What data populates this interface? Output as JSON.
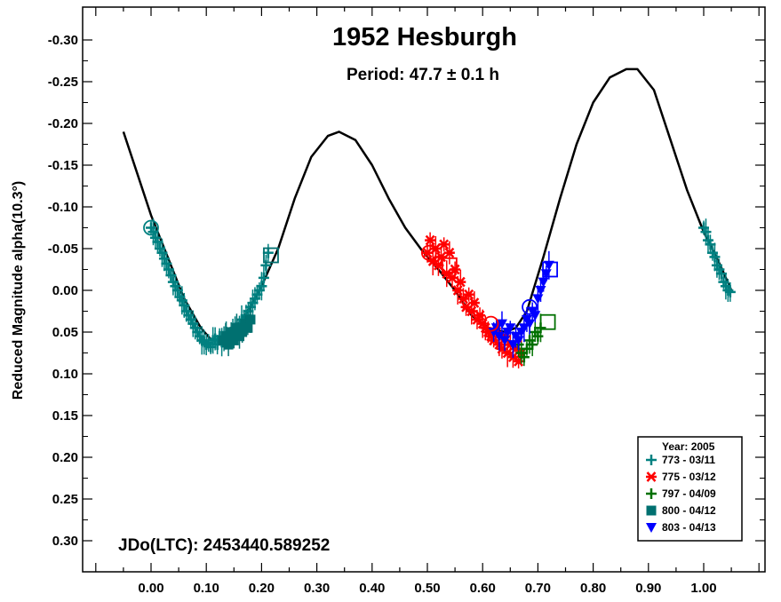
{
  "chart_data": {
    "type": "scatter",
    "title": "1952 Hesburgh",
    "subtitle": "Period: 47.7 ± 0.1 h",
    "xlabel": "",
    "ylabel": "Reduced Magnitude alpha(10.3°)",
    "annotation": "JDo(LTC): 2453440.589252",
    "xlim": [
      -0.12,
      1.12
    ],
    "ylim": [
      0.33,
      -0.33
    ],
    "y_inverted": true,
    "x_ticks": [
      "0.00",
      "0.10",
      "0.20",
      "0.30",
      "0.40",
      "0.50",
      "0.60",
      "0.70",
      "0.80",
      "0.90",
      "1.00"
    ],
    "x_tick_values": [
      0.0,
      0.1,
      0.2,
      0.3,
      0.4,
      0.5,
      0.6,
      0.7,
      0.8,
      0.9,
      1.0
    ],
    "y_ticks": [
      "-0.30",
      "-0.25",
      "-0.20",
      "-0.15",
      "-0.10",
      "-0.05",
      "0.00",
      "0.05",
      "0.10",
      "0.15",
      "0.20",
      "0.25",
      "0.30"
    ],
    "y_tick_values": [
      -0.3,
      -0.25,
      -0.2,
      -0.15,
      -0.1,
      -0.05,
      0.0,
      0.05,
      0.1,
      0.15,
      0.2,
      0.25,
      0.3
    ],
    "legend": {
      "title": "Year: 2005",
      "placement": "bottom-right"
    },
    "fit_curve": {
      "color": "#000000",
      "x": [
        -0.05,
        -0.02,
        0.0,
        0.03,
        0.06,
        0.09,
        0.11,
        0.14,
        0.17,
        0.2,
        0.23,
        0.26,
        0.29,
        0.32,
        0.34,
        0.37,
        0.4,
        0.43,
        0.46,
        0.49,
        0.52,
        0.55,
        0.58,
        0.61,
        0.64,
        0.66,
        0.68,
        0.71,
        0.74,
        0.77,
        0.8,
        0.83,
        0.86,
        0.88,
        0.91,
        0.94,
        0.97,
        1.0,
        1.03,
        1.05
      ],
      "y": [
        -0.19,
        -0.13,
        -0.09,
        -0.04,
        0.01,
        0.045,
        0.06,
        0.055,
        0.03,
        -0.005,
        -0.05,
        -0.11,
        -0.16,
        -0.185,
        -0.19,
        -0.18,
        -0.15,
        -0.11,
        -0.075,
        -0.048,
        -0.025,
        0.0,
        0.03,
        0.045,
        0.05,
        0.045,
        0.025,
        -0.04,
        -0.11,
        -0.175,
        -0.225,
        -0.255,
        -0.265,
        -0.265,
        -0.24,
        -0.18,
        -0.12,
        -0.07,
        -0.03,
        0.0
      ]
    },
    "series": [
      {
        "name": "773 - 03/11",
        "color": "#008080",
        "marker": "plus",
        "x": [
          0.0,
          0.004,
          0.008,
          0.012,
          0.016,
          0.02,
          0.024,
          0.028,
          0.032,
          0.036,
          0.04,
          0.044,
          0.048,
          0.052,
          0.056,
          0.06,
          0.064,
          0.068,
          0.072,
          0.076,
          0.08,
          0.084,
          0.088,
          0.092,
          0.096,
          0.1,
          0.104,
          0.108,
          0.112,
          0.116,
          0.12,
          0.124,
          0.128,
          0.132,
          0.136,
          0.14,
          0.144,
          0.148,
          0.152,
          0.156,
          0.16,
          0.164,
          0.168,
          0.172,
          0.176,
          0.18,
          0.184,
          0.188,
          0.192,
          0.196,
          0.2,
          0.204,
          0.208,
          0.212,
          1.0,
          1.004,
          1.008,
          1.012,
          1.016,
          1.02,
          1.024,
          1.028,
          1.032,
          1.036,
          1.04,
          1.044,
          1.048
        ],
        "y": [
          -0.075,
          -0.07,
          -0.063,
          -0.058,
          -0.05,
          -0.045,
          -0.038,
          -0.032,
          -0.025,
          -0.018,
          -0.01,
          -0.005,
          0.0,
          0.008,
          0.012,
          0.018,
          0.025,
          0.03,
          0.035,
          0.04,
          0.045,
          0.05,
          0.055,
          0.06,
          0.062,
          0.065,
          0.063,
          0.068,
          0.06,
          0.058,
          0.065,
          0.055,
          0.062,
          0.058,
          0.05,
          0.055,
          0.06,
          0.05,
          0.045,
          0.048,
          0.04,
          0.035,
          0.038,
          0.03,
          0.025,
          0.02,
          0.015,
          0.01,
          0.005,
          0.0,
          -0.005,
          -0.015,
          -0.03,
          -0.045,
          -0.075,
          -0.07,
          -0.06,
          -0.055,
          -0.045,
          -0.04,
          -0.03,
          -0.025,
          -0.02,
          -0.01,
          -0.005,
          0.0,
          0.002
        ]
      },
      {
        "name": "775 - 03/12",
        "color": "#ff0000",
        "marker": "asterisk",
        "x": [
          0.5,
          0.505,
          0.51,
          0.515,
          0.52,
          0.525,
          0.53,
          0.535,
          0.54,
          0.545,
          0.55,
          0.555,
          0.56,
          0.565,
          0.57,
          0.575,
          0.58,
          0.585,
          0.59,
          0.595,
          0.6,
          0.605,
          0.61,
          0.615,
          0.62,
          0.625,
          0.63,
          0.635,
          0.64,
          0.645,
          0.65,
          0.655,
          0.66,
          0.665,
          0.67
        ],
        "y": [
          -0.045,
          -0.06,
          -0.035,
          -0.05,
          -0.03,
          -0.04,
          -0.055,
          -0.02,
          -0.045,
          -0.015,
          -0.025,
          0.0,
          -0.01,
          0.01,
          0.02,
          0.005,
          0.025,
          0.015,
          0.035,
          0.03,
          0.04,
          0.045,
          0.05,
          0.055,
          0.06,
          0.05,
          0.065,
          0.07,
          0.055,
          0.075,
          0.065,
          0.08,
          0.07,
          0.085,
          0.075
        ]
      },
      {
        "name": "797 - 04/09",
        "color": "#007000",
        "marker": "plus",
        "x": [
          0.665,
          0.67,
          0.675,
          0.68,
          0.685,
          0.69,
          0.695,
          0.7,
          0.705
        ],
        "y": [
          0.065,
          0.075,
          0.08,
          0.07,
          0.06,
          0.065,
          0.05,
          0.055,
          0.045
        ]
      },
      {
        "name": "800 - 04/12",
        "color": "#007070",
        "marker": "square",
        "x": [
          0.13,
          0.135,
          0.14,
          0.145,
          0.15,
          0.155,
          0.16,
          0.165,
          0.17,
          0.175,
          0.18
        ],
        "y": [
          0.06,
          0.055,
          0.065,
          0.05,
          0.06,
          0.045,
          0.055,
          0.05,
          0.04,
          0.045,
          0.035
        ]
      },
      {
        "name": "803 - 04/13",
        "color": "#0000ff",
        "marker": "triangle",
        "x": [
          0.62,
          0.625,
          0.63,
          0.635,
          0.64,
          0.645,
          0.65,
          0.655,
          0.66,
          0.665,
          0.67,
          0.675,
          0.68,
          0.685,
          0.69,
          0.695,
          0.7,
          0.705,
          0.71,
          0.715,
          0.72
        ],
        "y": [
          0.05,
          0.045,
          0.055,
          0.04,
          0.06,
          0.05,
          0.045,
          0.065,
          0.055,
          0.06,
          0.05,
          0.045,
          0.035,
          0.04,
          0.025,
          0.03,
          0.01,
          0.0,
          -0.01,
          -0.02,
          -0.03
        ]
      }
    ],
    "session_markers": {
      "circle": [
        {
          "x": 0.0,
          "y": -0.075,
          "color": "#008080"
        },
        {
          "x": 0.503,
          "y": -0.045,
          "color": "#ff0000"
        },
        {
          "x": 0.615,
          "y": 0.04,
          "color": "#ff0000"
        },
        {
          "x": 0.685,
          "y": 0.02,
          "color": "#0000ff"
        }
      ],
      "square": [
        {
          "x": 0.217,
          "y": -0.042,
          "color": "#007070"
        },
        {
          "x": 0.54,
          "y": -0.03,
          "color": "#ff0000"
        },
        {
          "x": 0.718,
          "y": 0.038,
          "color": "#007000"
        },
        {
          "x": 0.722,
          "y": -0.025,
          "color": "#0000ff"
        }
      ]
    }
  }
}
